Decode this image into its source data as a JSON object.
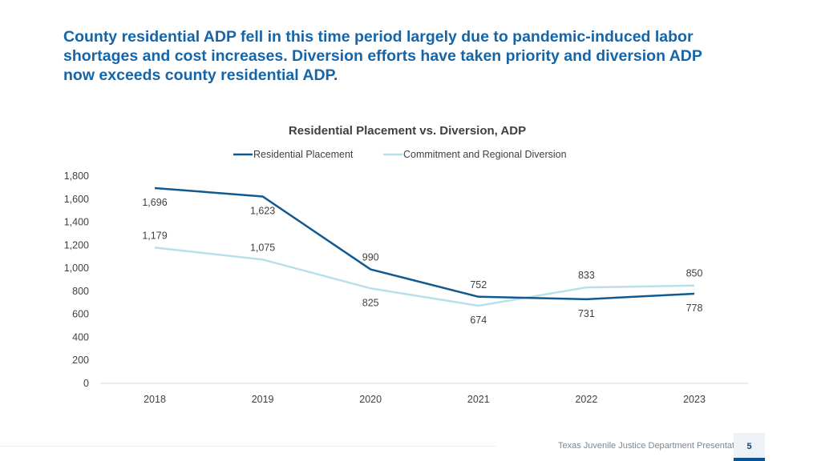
{
  "headline": {
    "line1": "County residential ADP fell in this time period largely due to pandemic-induced labor",
    "line2": "shortages and cost increases. Diversion efforts have taken priority and diversion ADP",
    "line3": "now exceeds county residential ADP."
  },
  "chart_data": {
    "type": "line",
    "title": "Residential Placement vs. Diversion, ADP",
    "categories": [
      "2018",
      "2019",
      "2020",
      "2021",
      "2022",
      "2023"
    ],
    "series": [
      {
        "name": "Residential Placement",
        "values": [
          1696,
          1623,
          990,
          752,
          731,
          778
        ],
        "labels": [
          "1,696",
          "1,623",
          "990",
          "752",
          "731",
          "778"
        ],
        "label_pos": [
          "below",
          "below",
          "above",
          "above",
          "below",
          "below"
        ],
        "color": "#11598f"
      },
      {
        "name": "Commitment and Regional Diversion",
        "values": [
          1179,
          1075,
          825,
          674,
          833,
          850
        ],
        "labels": [
          "1,179",
          "1,075",
          "825",
          "674",
          "833",
          "850"
        ],
        "label_pos": [
          "above",
          "above",
          "below",
          "below",
          "above",
          "above"
        ],
        "color": "#b9e0ea"
      }
    ],
    "ylim": [
      0,
      1800
    ],
    "yticks": [
      "0",
      "200",
      "400",
      "600",
      "800",
      "1,000",
      "1,200",
      "1,400",
      "1,600",
      "1,800"
    ],
    "ytick_values": [
      0,
      200,
      400,
      600,
      800,
      1000,
      1200,
      1400,
      1600,
      1800
    ],
    "legend": "top",
    "grid": false
  },
  "footer": {
    "presentation": "Texas Juvenile Justice Department Presentation",
    "page": "5"
  },
  "colors": {
    "headline": "#1565a8",
    "axis": "#d9d9d9",
    "text": "#404040"
  }
}
